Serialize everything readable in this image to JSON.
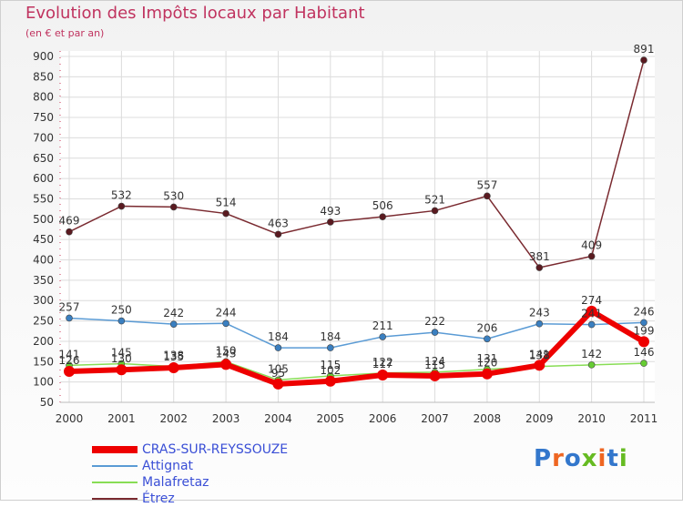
{
  "title": "Evolution des Impôts locaux par Habitant",
  "subtitle": "(en € et par an)",
  "logo": "Proxiti",
  "chart_data": {
    "type": "line",
    "categories": [
      "2000",
      "2001",
      "2002",
      "2003",
      "2004",
      "2005",
      "2006",
      "2007",
      "2008",
      "2009",
      "2010",
      "2011"
    ],
    "ylim": [
      50,
      900
    ],
    "yticks": [
      50,
      100,
      150,
      200,
      250,
      300,
      350,
      400,
      450,
      500,
      550,
      600,
      650,
      700,
      750,
      800,
      850,
      900
    ],
    "series": [
      {
        "name": "CRAS-SUR-REYSSOUZE",
        "color": "#ee0000",
        "width": 6,
        "values": [
          126,
          130,
          135,
          143,
          95,
          102,
          117,
          115,
          120,
          141,
          274,
          199
        ]
      },
      {
        "name": "Attignat",
        "color": "#5a9bd5",
        "width": 1.5,
        "values": [
          257,
          250,
          242,
          244,
          184,
          184,
          211,
          222,
          206,
          243,
          241,
          246
        ]
      },
      {
        "name": "Malafretaz",
        "color": "#88dd55",
        "width": 1.5,
        "values": [
          141,
          145,
          138,
          150,
          105,
          115,
          122,
          124,
          131,
          138,
          142,
          146
        ]
      },
      {
        "name": "Étrez",
        "color": "#7a2a30",
        "width": 1.5,
        "values": [
          469,
          532,
          530,
          514,
          463,
          493,
          506,
          521,
          557,
          381,
          409,
          891
        ]
      }
    ],
    "grid": true,
    "legend_position": "bottom-left"
  }
}
